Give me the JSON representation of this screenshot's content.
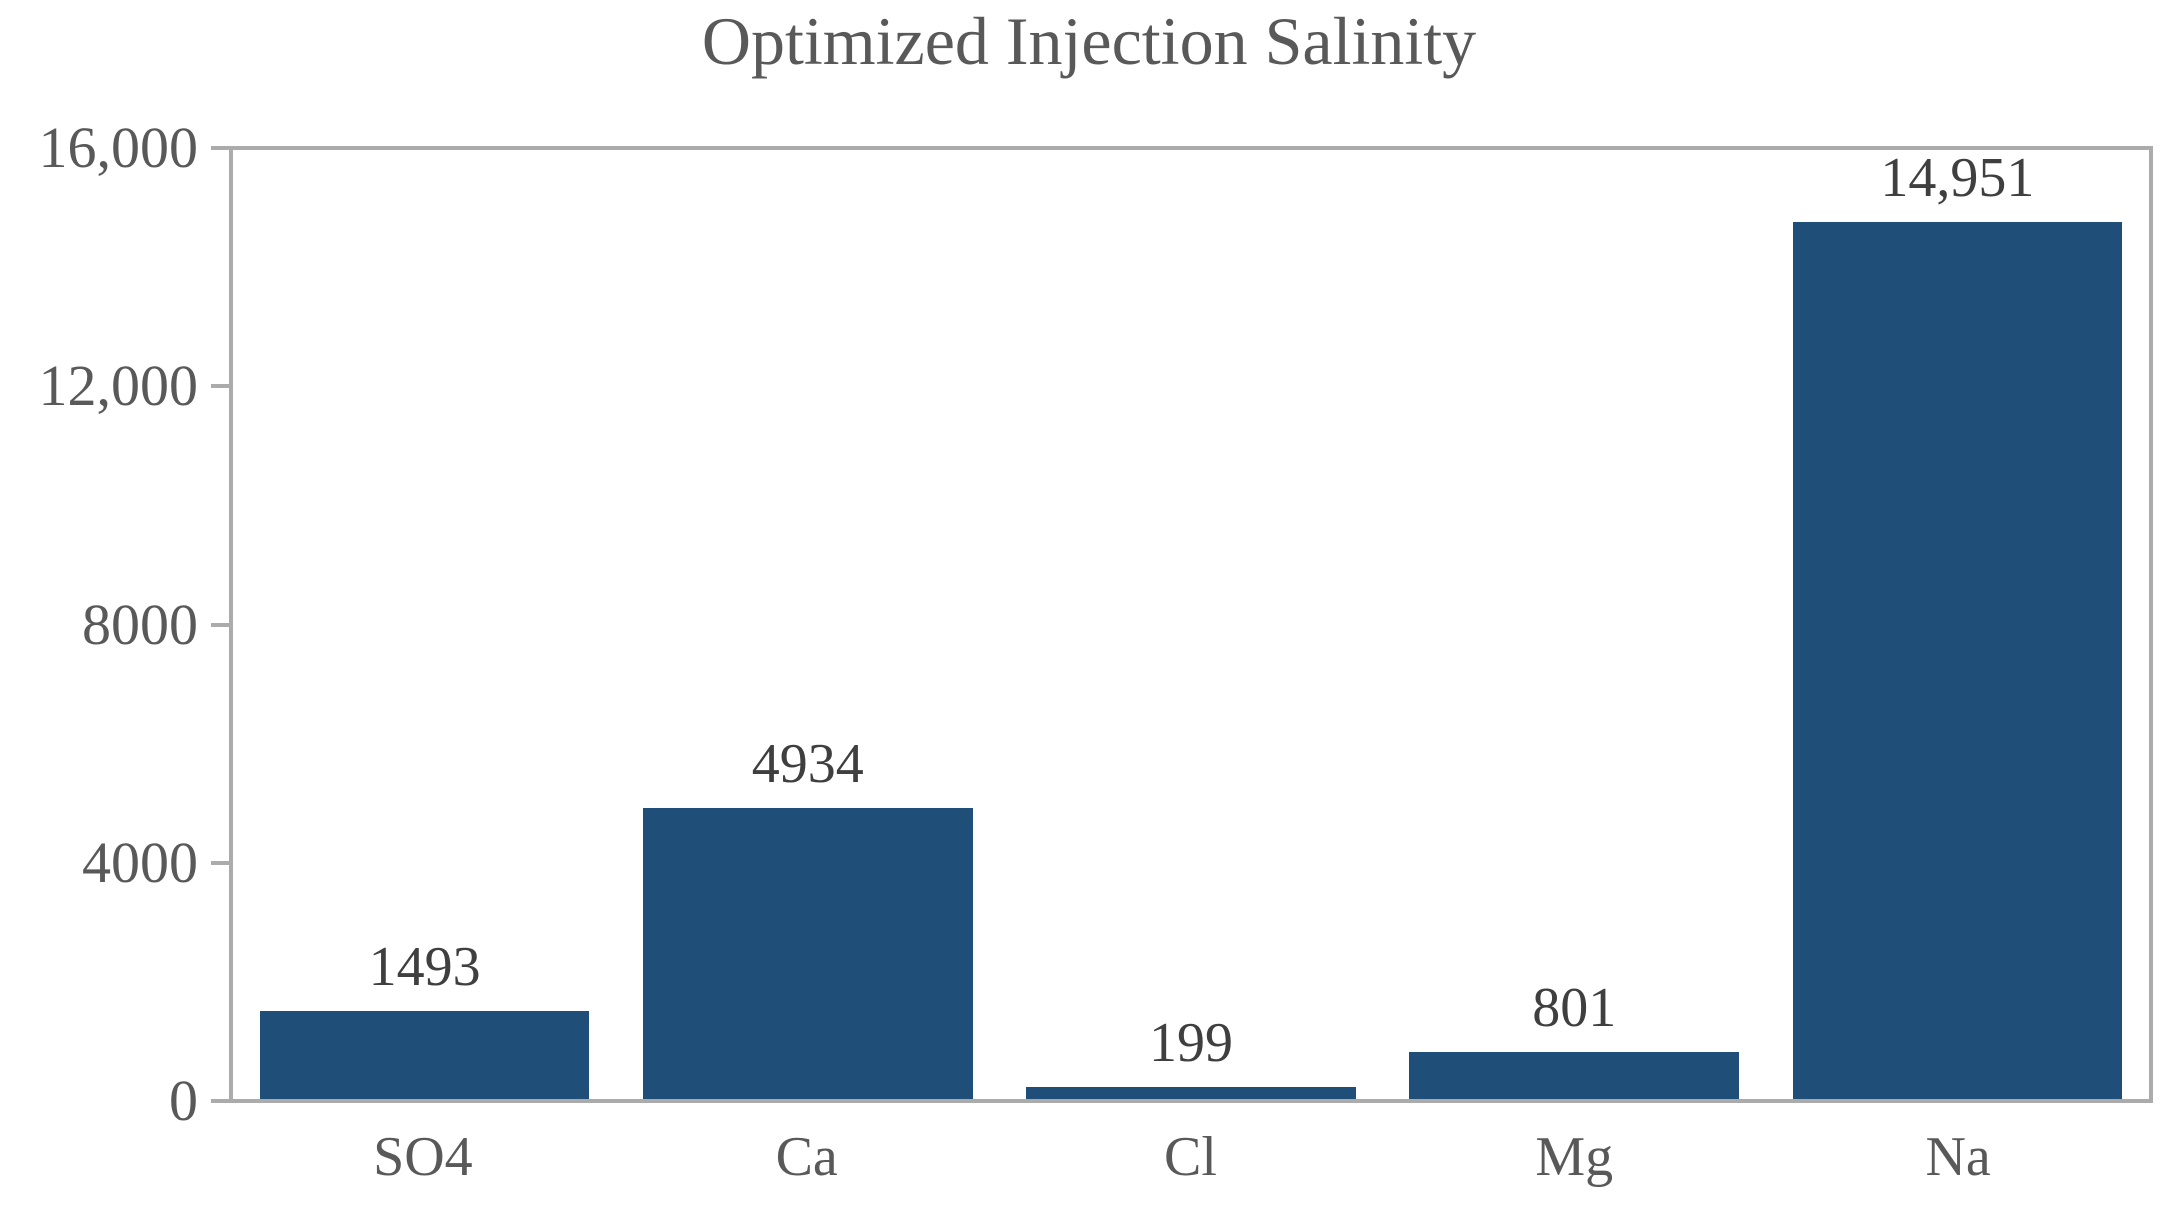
{
  "chart_data": {
    "type": "bar",
    "title": "Optimized Injection Salinity",
    "categories": [
      "SO4",
      "Ca",
      "Cl",
      "Mg",
      "Na"
    ],
    "values": [
      1493,
      4934,
      199,
      801,
      14951
    ],
    "data_labels": [
      "1493",
      "4934",
      "199",
      "801",
      "14,951"
    ],
    "xlabel": "",
    "ylabel": "",
    "ylim": [
      0,
      16000
    ],
    "yticks": [
      {
        "value": 0,
        "label": "0"
      },
      {
        "value": 4000,
        "label": "4000"
      },
      {
        "value": 8000,
        "label": "8000"
      },
      {
        "value": 12000,
        "label": "12,000"
      },
      {
        "value": 16000,
        "label": "16,000"
      }
    ],
    "grid": false,
    "legend": false,
    "data_labels_shown": true,
    "plot_border": "top-right",
    "colors": {
      "bar": "#1f4e79",
      "axis": "#ababab",
      "title_text": "#595959",
      "tick_text": "#595959",
      "data_label_text": "#3f3f3f",
      "background": "#ffffff"
    }
  }
}
